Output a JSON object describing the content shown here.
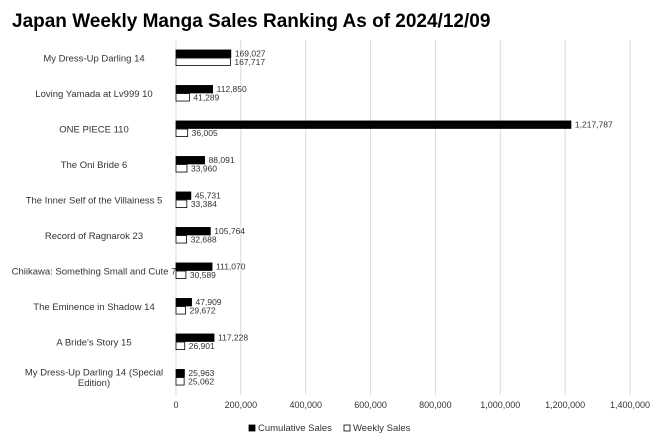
{
  "chart_data": {
    "type": "bar",
    "orientation": "horizontal",
    "title": "Japan Weekly Manga Sales Ranking As of 2024/12/09",
    "categories": [
      "My Dress-Up Darling 14",
      "Loving Yamada at Lv999 10",
      "ONE PIECE 110",
      "The Oni Bride 6",
      "The Inner Self of the Villainess 5",
      "Record of Ragnarok 23",
      "Chiikawa: Something Small and Cute 7",
      "The Eminence in Shadow 14",
      "A Bride's Story 15",
      "My Dress-Up Darling 14 (Special Edition)"
    ],
    "series": [
      {
        "name": "Cumulative Sales",
        "color": "#000000",
        "values": [
          169027,
          112850,
          1217787,
          88091,
          45731,
          105764,
          111070,
          47909,
          117228,
          25963
        ],
        "labels": [
          "169,027",
          "112,850",
          "1,217,787",
          "88,091",
          "45,731",
          "105,764",
          "111,070",
          "47,909",
          "117,228",
          "25,963"
        ]
      },
      {
        "name": "Weekly Sales",
        "color": "#ffffff",
        "values": [
          167717,
          41289,
          36005,
          33960,
          33384,
          32688,
          30589,
          29672,
          26901,
          25062
        ],
        "labels": [
          "167,717",
          "41,289",
          "36,005",
          "33,960",
          "33,384",
          "32,688",
          "30,589",
          "29,672",
          "26,901",
          "25,062"
        ]
      }
    ],
    "xlim": [
      0,
      1400000
    ],
    "xticks": [
      0,
      200000,
      400000,
      600000,
      800000,
      1000000,
      1200000,
      1400000
    ],
    "xtick_labels": [
      "0",
      "200,000",
      "400,000",
      "600,000",
      "800,000",
      "1,000,000",
      "1,200,000",
      "1,400,000"
    ],
    "grid": true,
    "legend": "bottom"
  }
}
